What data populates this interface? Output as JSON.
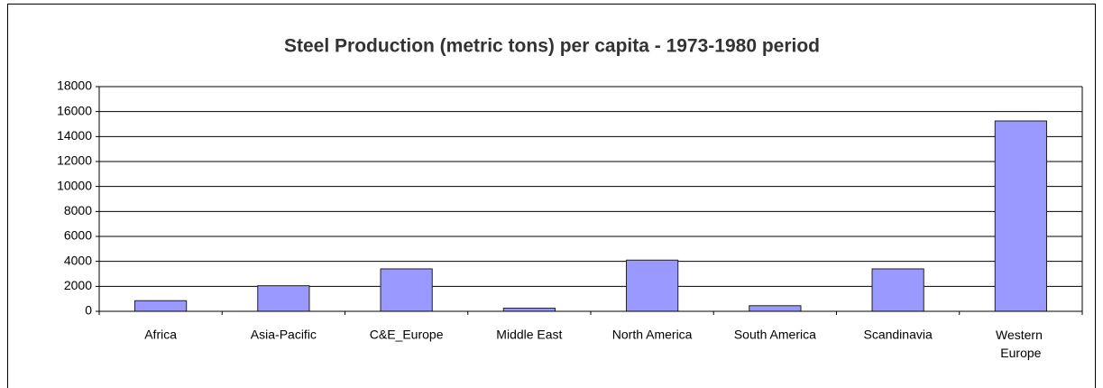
{
  "chart_data": {
    "type": "bar",
    "title": "Steel Production (metric tons) per capita - 1973-1980 period",
    "categories": [
      "Africa",
      "Asia-Pacific",
      "C&E_Europe",
      "Middle East",
      "North America",
      "South America",
      "Scandinavia",
      "Western Europe"
    ],
    "values": [
      850,
      2050,
      3400,
      250,
      4100,
      450,
      3400,
      15250
    ],
    "color": "#9999ff",
    "ylim": [
      0,
      18000
    ],
    "yticks": [
      0,
      2000,
      4000,
      6000,
      8000,
      10000,
      12000,
      14000,
      16000,
      18000
    ],
    "grid": true
  }
}
